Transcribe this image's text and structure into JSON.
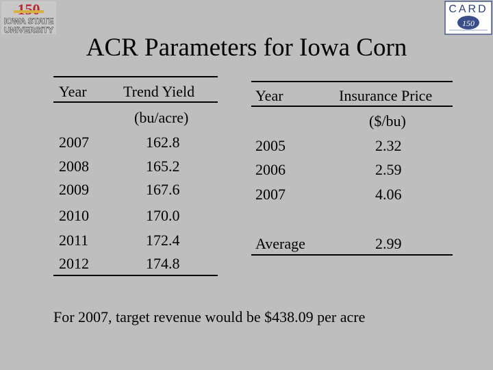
{
  "logos": {
    "left": {
      "badge": "150",
      "line1": "IOWA STATE",
      "line2": "UNIVERSITY"
    },
    "right": {
      "text": "CARD",
      "badge": "150"
    }
  },
  "title": "ACR Parameters for Iowa Corn",
  "yield_table": {
    "headers": {
      "year": "Year",
      "trend_yield": "Trend Yield",
      "unit": "(bu/acre)"
    },
    "rows": [
      {
        "year": "2007",
        "value": "162.8"
      },
      {
        "year": "2008",
        "value": "165.2"
      },
      {
        "year": "2009",
        "value": "167.6"
      },
      {
        "year": "2010",
        "value": "170.0"
      },
      {
        "year": "2011",
        "value": "172.4"
      },
      {
        "year": "2012",
        "value": "174.8"
      }
    ]
  },
  "price_table": {
    "headers": {
      "year": "Year",
      "price": "Insurance Price",
      "unit": "($/bu)"
    },
    "rows": [
      {
        "year": "2005",
        "value": "2.32"
      },
      {
        "year": "2006",
        "value": "2.59"
      },
      {
        "year": "2007",
        "value": "4.06"
      }
    ],
    "average": {
      "label": "Average",
      "value": "2.99"
    }
  },
  "footer": "For 2007, target revenue would be $438.09 per acre"
}
